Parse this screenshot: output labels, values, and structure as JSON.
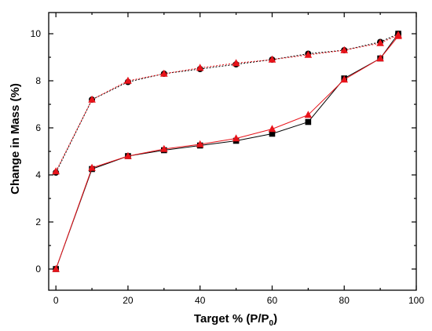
{
  "chart_data": {
    "type": "line",
    "xlabel": "Target % (P/P",
    "xlabel_sub": "0",
    "xlabel_end": ")",
    "ylabel": "Change in Mass (%)",
    "xlim": [
      -2,
      100
    ],
    "ylim": [
      -0.9,
      10.9
    ],
    "xticks": [
      0,
      20,
      40,
      60,
      80,
      100
    ],
    "yticks": [
      0,
      2,
      4,
      6,
      8,
      10
    ],
    "grid": false,
    "series": [
      {
        "color": "#000000",
        "marker": "square",
        "line": "solid",
        "x": [
          0,
          10,
          20,
          30,
          40,
          50,
          60,
          70,
          80,
          90,
          95
        ],
        "y": [
          0.0,
          4.25,
          4.8,
          5.05,
          5.25,
          5.45,
          5.75,
          6.25,
          8.1,
          8.95,
          10.0
        ]
      },
      {
        "color": "#000000",
        "marker": "circle",
        "line": "dotted",
        "x": [
          0,
          10,
          20,
          30,
          40,
          50,
          60,
          70,
          80,
          90,
          95
        ],
        "y": [
          4.1,
          7.2,
          7.95,
          8.3,
          8.5,
          8.7,
          8.9,
          9.15,
          9.3,
          9.65,
          10.0
        ]
      },
      {
        "color": "#e8131a",
        "marker": "triangle",
        "line": "solid",
        "x": [
          0,
          10,
          20,
          30,
          40,
          50,
          60,
          70,
          80,
          90,
          95
        ],
        "y": [
          0.0,
          4.3,
          4.8,
          5.1,
          5.3,
          5.55,
          5.95,
          6.55,
          8.05,
          8.95,
          9.9
        ]
      },
      {
        "color": "#e8131a",
        "marker": "triangle",
        "line": "dotted",
        "x": [
          0,
          10,
          20,
          30,
          40,
          50,
          60,
          70,
          80,
          90,
          95
        ],
        "y": [
          4.15,
          7.2,
          8.0,
          8.3,
          8.55,
          8.75,
          8.9,
          9.1,
          9.3,
          9.6,
          9.95
        ]
      }
    ]
  }
}
